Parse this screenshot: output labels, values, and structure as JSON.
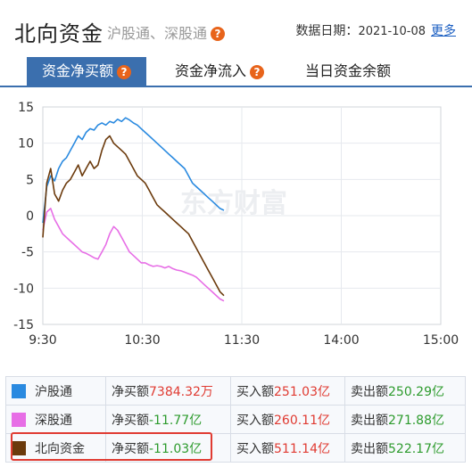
{
  "header": {
    "title": "北向资金",
    "subtitle": "沪股通、深股通",
    "date_label": "数据日期：",
    "date_value": "2021-10-08",
    "more_label": "更多"
  },
  "tabs": [
    {
      "label": "资金净买额",
      "active": true,
      "has_help": true
    },
    {
      "label": "资金净流入",
      "active": false,
      "has_help": true
    },
    {
      "label": "当日资金余额",
      "active": false,
      "has_help": false
    }
  ],
  "watermark": "东方财富",
  "colors": {
    "accent": "#3b6fae",
    "hgt": "#2a8ae0",
    "sgt": "#e76ee6",
    "north": "#6b3a0c",
    "up": "#e03b32",
    "down": "#2d9b2d"
  },
  "chart_data": {
    "type": "line",
    "x_ticks": [
      "9:30",
      "10:30",
      "11:30",
      "14:00",
      "15:00"
    ],
    "y_ticks": [
      "15",
      "10",
      "5",
      "0",
      "-5",
      "-10",
      "-15"
    ],
    "ylim": [
      -15,
      15
    ],
    "grid": true,
    "series": [
      {
        "name": "沪股通",
        "color": "#2a8ae0",
        "values": [
          -1.0,
          4.0,
          5.5,
          4.8,
          6.5,
          7.5,
          8.0,
          9.0,
          10.0,
          11.0,
          10.5,
          11.5,
          12.0,
          11.8,
          12.5,
          12.8,
          12.5,
          13.0,
          12.8,
          13.3,
          13.0,
          13.5,
          13.2,
          12.8,
          12.5,
          12.0,
          11.5,
          11.0,
          10.5,
          10.0,
          9.5,
          9.0,
          8.5,
          8.0,
          7.5,
          7.0,
          6.5,
          5.5,
          4.5,
          4.0,
          3.5,
          3.0,
          2.5,
          2.0,
          1.5,
          1.0,
          0.74
        ]
      },
      {
        "name": "深股通",
        "color": "#e76ee6",
        "values": [
          -2.0,
          0.5,
          1.0,
          -0.5,
          -1.5,
          -2.5,
          -3.0,
          -3.5,
          -4.0,
          -4.5,
          -5.0,
          -5.2,
          -5.5,
          -5.8,
          -6.0,
          -5.0,
          -4.0,
          -2.5,
          -1.5,
          -2.0,
          -3.0,
          -4.0,
          -5.0,
          -5.5,
          -6.0,
          -6.5,
          -6.5,
          -6.8,
          -7.0,
          -6.9,
          -7.0,
          -7.2,
          -7.0,
          -7.3,
          -7.5,
          -7.6,
          -7.8,
          -8.0,
          -8.2,
          -8.5,
          -9.0,
          -9.5,
          -10.0,
          -10.5,
          -11.0,
          -11.5,
          -11.77
        ]
      },
      {
        "name": "北向资金",
        "color": "#6b3a0c",
        "values": [
          -3.0,
          4.5,
          6.5,
          3.0,
          2.0,
          3.5,
          4.5,
          5.0,
          6.0,
          7.0,
          5.5,
          6.5,
          7.5,
          6.5,
          7.0,
          9.0,
          10.5,
          11.0,
          10.0,
          9.5,
          9.0,
          8.5,
          7.5,
          6.5,
          5.5,
          5.0,
          4.5,
          3.5,
          2.5,
          1.5,
          1.0,
          0.5,
          0.0,
          -0.5,
          -1.0,
          -1.5,
          -2.0,
          -2.5,
          -3.5,
          -4.5,
          -5.5,
          -6.5,
          -7.5,
          -8.5,
          -9.5,
          -10.5,
          -11.03
        ]
      }
    ]
  },
  "legend": [
    {
      "name": "沪股通",
      "color": "#2a8ae0",
      "net_label": "净买额",
      "net_value": "7384.32万",
      "net_dir": "up",
      "buy_label": "买入额",
      "buy_value": "251.03亿",
      "sell_label": "卖出额",
      "sell_value": "250.29亿"
    },
    {
      "name": "深股通",
      "color": "#e76ee6",
      "net_label": "净买额",
      "net_value": "-11.77亿",
      "net_dir": "down",
      "buy_label": "买入额",
      "buy_value": "260.11亿",
      "sell_label": "卖出额",
      "sell_value": "271.88亿"
    },
    {
      "name": "北向资金",
      "color": "#6b3a0c",
      "net_label": "净买额",
      "net_value": "-11.03亿",
      "net_dir": "down",
      "buy_label": "买入额",
      "buy_value": "511.14亿",
      "sell_label": "卖出额",
      "sell_value": "522.17亿"
    }
  ]
}
